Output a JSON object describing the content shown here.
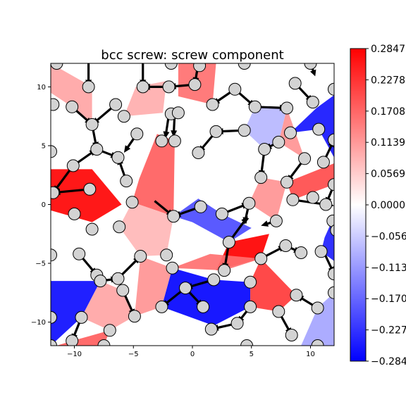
{
  "chart_data": {
    "type": "heatmap",
    "title": "bcc screw: screw component",
    "xlabel": "",
    "ylabel": "",
    "xlim": [
      -12,
      12
    ],
    "ylim": [
      -12,
      12
    ],
    "x_ticks": [
      -10,
      -5,
      0,
      5,
      10
    ],
    "y_ticks": [
      10,
      5,
      0,
      -5,
      -10
    ],
    "x_tick_labels": [
      "−10",
      "−5",
      "0",
      "5",
      "10"
    ],
    "y_tick_labels": [
      "10",
      "5",
      "0",
      "−5",
      "−10"
    ],
    "colormap": "bwr",
    "colors": {
      "min": "#0000ff",
      "mid": "#ffffff",
      "max": "#ff0000",
      "atom": "#d3d3d3"
    },
    "colorbar": {
      "min": -0.2847,
      "max": 0.2847,
      "ticks": [
        0.2847,
        0.2278,
        0.1708,
        0.1139,
        0.0569,
        0.0,
        -0.0569,
        -0.1139,
        -0.1708,
        -0.2278,
        -0.2847
      ],
      "tick_labels": [
        "0.2847",
        "0.2278",
        "0.1708",
        "0.1139",
        "0.0569",
        "0.0000",
        "−0.0569",
        "−0.1139",
        "−0.1708",
        "−0.2278",
        "−0.2847"
      ]
    },
    "atoms": [
      [
        -11.5,
        12.0
      ],
      [
        -8.8,
        10.0
      ],
      [
        -4.2,
        10.0
      ],
      [
        -2.0,
        10.0
      ],
      [
        0.2,
        10.2
      ],
      [
        -11.8,
        8.5
      ],
      [
        -10.2,
        8.3
      ],
      [
        -8.5,
        6.8
      ],
      [
        -6.5,
        8.5
      ],
      [
        -5.8,
        7.5
      ],
      [
        -1.8,
        7.7
      ],
      [
        -1.2,
        7.8
      ],
      [
        1.7,
        8.5
      ],
      [
        3.6,
        9.8
      ],
      [
        5.3,
        8.3
      ],
      [
        8.0,
        8.2
      ],
      [
        10.2,
        8.7
      ],
      [
        8.7,
        10.3
      ],
      [
        -1.8,
        12.0
      ],
      [
        0.6,
        11.8
      ],
      [
        4.4,
        12.0
      ],
      [
        10.0,
        12.0
      ],
      [
        12.0,
        9.8
      ],
      [
        -8.1,
        4.7
      ],
      [
        -6.3,
        4.0
      ],
      [
        -4.7,
        6.0
      ],
      [
        -2.6,
        5.4
      ],
      [
        -1.5,
        5.4
      ],
      [
        0.5,
        4.4
      ],
      [
        2.0,
        6.2
      ],
      [
        4.4,
        6.3
      ],
      [
        6.1,
        4.7
      ],
      [
        7.3,
        5.3
      ],
      [
        8.3,
        6.1
      ],
      [
        9.5,
        3.9
      ],
      [
        10.7,
        6.4
      ],
      [
        11.1,
        3.6
      ],
      [
        12.0,
        5.5
      ],
      [
        -12.0,
        4.5
      ],
      [
        -10.1,
        3.3
      ],
      [
        -5.6,
        2.0
      ],
      [
        -11.8,
        1.0
      ],
      [
        -8.7,
        1.3
      ],
      [
        5.8,
        2.3
      ],
      [
        8.0,
        1.9
      ],
      [
        10.2,
        0.6
      ],
      [
        8.5,
        0.4
      ],
      [
        11.3,
        0.0
      ],
      [
        12.0,
        1.7
      ],
      [
        -10.0,
        -0.8
      ],
      [
        -5.1,
        0.2
      ],
      [
        -1.6,
        -1.0
      ],
      [
        0.7,
        -0.2
      ],
      [
        2.5,
        -0.8
      ],
      [
        4.8,
        0.1
      ],
      [
        7.1,
        -1.4
      ],
      [
        11.9,
        -1.4
      ],
      [
        12.2,
        -2.2
      ],
      [
        -8.5,
        -2.1
      ],
      [
        -6.2,
        -1.9
      ],
      [
        -4.4,
        -4.4
      ],
      [
        -2.2,
        -4.3
      ],
      [
        -1.7,
        -5.4
      ],
      [
        3.1,
        -3.2
      ],
      [
        5.8,
        -4.6
      ],
      [
        7.9,
        -3.5
      ],
      [
        9.2,
        -4.1
      ],
      [
        10.9,
        -4.0
      ],
      [
        12.0,
        -5.9
      ],
      [
        -12.0,
        -4.3
      ],
      [
        -9.6,
        -4.2
      ],
      [
        -8.1,
        -6.0
      ],
      [
        -6.3,
        -6.3
      ],
      [
        -5.9,
        -7.3
      ],
      [
        -7.8,
        -6.5
      ],
      [
        2.7,
        -5.6
      ],
      [
        1.8,
        -6.4
      ],
      [
        4.9,
        -6.6
      ],
      [
        -4.9,
        -9.5
      ],
      [
        -2.6,
        -8.7
      ],
      [
        -0.6,
        -7.1
      ],
      [
        0.9,
        -8.7
      ],
      [
        4.9,
        -8.7
      ],
      [
        -12.0,
        -9.6
      ],
      [
        -9.4,
        -9.6
      ],
      [
        -7.0,
        -10.7
      ],
      [
        1.6,
        -10.6
      ],
      [
        3.8,
        -10.1
      ],
      [
        7.3,
        -9.1
      ],
      [
        8.4,
        -11.1
      ],
      [
        10.6,
        -8.8
      ],
      [
        12.0,
        -7.5
      ],
      [
        8.8,
        -7.7
      ],
      [
        -10.2,
        -11.6
      ],
      [
        -7.5,
        -12.0
      ],
      [
        4.6,
        -12.0
      ],
      [
        10.6,
        -12.0
      ],
      [
        -12.0,
        -12.0
      ]
    ],
    "arrows": [
      [
        -8.8,
        12.0,
        -8.8,
        10.0
      ],
      [
        -4.2,
        12.0,
        -4.2,
        10.0
      ],
      [
        -2.0,
        10.0,
        -4.2,
        10.0
      ],
      [
        0.2,
        10.2,
        -2.0,
        10.0
      ],
      [
        0.5,
        12.0,
        0.2,
        10.2
      ],
      [
        -10.2,
        8.3,
        -8.5,
        6.8
      ],
      [
        -6.5,
        8.5,
        -8.5,
        6.8
      ],
      [
        -11.8,
        8.5,
        -12.0,
        8.3
      ],
      [
        3.6,
        9.8,
        1.7,
        8.5
      ],
      [
        5.3,
        8.3,
        8.0,
        8.2
      ],
      [
        3.6,
        9.8,
        5.3,
        8.3
      ],
      [
        8.7,
        10.3,
        10.2,
        8.7
      ],
      [
        10.0,
        12.0,
        10.4,
        10.9
      ],
      [
        -1.5,
        7.8,
        -1.6,
        5.7
      ],
      [
        -2.0,
        7.6,
        -2.3,
        5.6
      ],
      [
        -8.1,
        4.7,
        -6.3,
        4.0
      ],
      [
        -8.5,
        6.8,
        -8.1,
        4.7
      ],
      [
        -4.7,
        6.0,
        -5.8,
        4.4
      ],
      [
        2.0,
        6.2,
        0.5,
        4.4
      ],
      [
        4.4,
        6.3,
        2.0,
        6.2
      ],
      [
        6.1,
        4.7,
        5.8,
        2.3
      ],
      [
        7.3,
        5.3,
        6.1,
        4.7
      ],
      [
        9.5,
        3.9,
        8.0,
        1.9
      ],
      [
        -10.1,
        3.3,
        -11.8,
        1.0
      ],
      [
        -10.1,
        3.3,
        -8.1,
        4.7
      ],
      [
        -8.7,
        1.3,
        -11.8,
        1.0
      ],
      [
        -5.6,
        2.0,
        -6.3,
        4.0
      ],
      [
        11.1,
        3.6,
        12.0,
        5.5
      ],
      [
        12.0,
        1.7,
        11.3,
        0.0
      ],
      [
        -3.2,
        0.3,
        -1.6,
        -1.0
      ],
      [
        0.7,
        -0.2,
        -1.6,
        -1.0
      ],
      [
        2.5,
        -0.8,
        4.8,
        0.1
      ],
      [
        8.5,
        0.4,
        12.0,
        -0.1
      ],
      [
        4.8,
        0.1,
        4.4,
        -1.7
      ],
      [
        7.1,
        -1.4,
        5.8,
        -1.8
      ],
      [
        3.1,
        -3.2,
        2.7,
        -5.6
      ],
      [
        3.1,
        -3.2,
        4.7,
        -1.0
      ],
      [
        5.8,
        -4.6,
        7.9,
        -3.5
      ],
      [
        7.9,
        -3.5,
        9.2,
        -4.1
      ],
      [
        -9.6,
        -4.2,
        -8.1,
        -6.0
      ],
      [
        -7.8,
        -6.5,
        -6.3,
        -6.3
      ],
      [
        -6.3,
        -6.3,
        -4.4,
        -4.4
      ],
      [
        -5.9,
        -7.3,
        -4.9,
        -9.5
      ],
      [
        -0.6,
        -7.1,
        -2.6,
        -8.7
      ],
      [
        1.8,
        -6.4,
        -0.6,
        -7.1
      ],
      [
        -0.6,
        -7.1,
        0.9,
        -8.7
      ],
      [
        4.9,
        -8.7,
        3.8,
        -10.1
      ],
      [
        3.8,
        -10.1,
        1.6,
        -10.6
      ],
      [
        7.3,
        -9.1,
        8.4,
        -11.1
      ],
      [
        10.6,
        -8.8,
        8.8,
        -7.7
      ],
      [
        -9.4,
        -9.6,
        -10.2,
        -11.6
      ],
      [
        11.2,
        -4.2,
        12.0,
        -5.9
      ]
    ],
    "regions": [
      {
        "polygon": [
          [
            -12,
            3
          ],
          [
            -8.5,
            3
          ],
          [
            -6,
            0
          ],
          [
            -8.5,
            -1.5
          ],
          [
            -12,
            -0.5
          ]
        ],
        "value": 0.28
      },
      {
        "polygon": [
          [
            -4.5,
            2.2
          ],
          [
            -3,
            6
          ],
          [
            -1.5,
            5.4
          ],
          [
            -1.6,
            -1.0
          ],
          [
            -5.1,
            0.2
          ]
        ],
        "value": 0.18
      },
      {
        "polygon": [
          [
            -1.2,
            12
          ],
          [
            2,
            12
          ],
          [
            1.7,
            8.5
          ],
          [
            -1.2,
            9.2
          ]
        ],
        "value": 0.16
      },
      {
        "polygon": [
          [
            -2.2,
            10.5
          ],
          [
            -2.5,
            7.8
          ],
          [
            -5.8,
            7.5
          ],
          [
            -4.8,
            10
          ]
        ],
        "value": 0.09
      },
      {
        "polygon": [
          [
            -8.5,
            10
          ],
          [
            -8.5,
            6.8
          ],
          [
            -10.2,
            8.3
          ],
          [
            -12,
            9.5
          ],
          [
            -12,
            12
          ]
        ],
        "value": 0.1
      },
      {
        "polygon": [
          [
            8.0,
            8.2
          ],
          [
            9.5,
            3.9
          ],
          [
            7.3,
            5.3
          ]
        ],
        "value": 0.12
      },
      {
        "polygon": [
          [
            8.0,
            1.9
          ],
          [
            12.0,
            3.5
          ],
          [
            12.0,
            1.7
          ],
          [
            8.5,
            0.4
          ]
        ],
        "value": 0.2
      },
      {
        "polygon": [
          [
            4.8,
            0.1
          ],
          [
            5.8,
            2.3
          ],
          [
            8.0,
            1.9
          ],
          [
            7.1,
            -1.4
          ]
        ],
        "value": 0.12
      },
      {
        "polygon": [
          [
            -12,
            -6.5
          ],
          [
            -7.8,
            -6.5
          ],
          [
            -9.4,
            -9.6
          ],
          [
            -12,
            -12
          ]
        ],
        "value": -0.27
      },
      {
        "polygon": [
          [
            -10.2,
            -11.6
          ],
          [
            -7.0,
            -10.7
          ],
          [
            -7.5,
            -12
          ],
          [
            -11.5,
            -12
          ]
        ],
        "value": 0.18
      },
      {
        "polygon": [
          [
            0.5,
            0.5
          ],
          [
            2.5,
            -0.8
          ],
          [
            5.0,
            -2.0
          ],
          [
            3.1,
            -3.2
          ],
          [
            0.0,
            -1.5
          ],
          [
            -1.6,
            -1.0
          ]
        ],
        "value": -0.2
      },
      {
        "polygon": [
          [
            -4.4,
            -4.4
          ],
          [
            -2.2,
            -4.3
          ],
          [
            -1.6,
            -1.0
          ],
          [
            -5.1,
            0.2
          ],
          [
            -6.2,
            -1.9
          ]
        ],
        "value": 0.08
      },
      {
        "polygon": [
          [
            2.0,
            -5.6
          ],
          [
            5.8,
            -4.6
          ],
          [
            6.5,
            -2.5
          ],
          [
            3.1,
            -3.2
          ]
        ],
        "value": 0.29
      },
      {
        "polygon": [
          [
            -1.7,
            -5.4
          ],
          [
            2.7,
            -5.6
          ],
          [
            5.8,
            -4.6
          ],
          [
            1.5,
            -4.2
          ]
        ],
        "value": 0.16
      },
      {
        "polygon": [
          [
            -1.7,
            -5.4
          ],
          [
            1.8,
            -6.4
          ],
          [
            4.9,
            -6.6
          ],
          [
            4.9,
            -8.7
          ],
          [
            1.8,
            -10.3
          ],
          [
            -2.6,
            -8.7
          ]
        ],
        "value": -0.28
      },
      {
        "polygon": [
          [
            5.8,
            -4.6
          ],
          [
            8.8,
            -7.7
          ],
          [
            7.3,
            -9.1
          ],
          [
            4.9,
            -8.7
          ],
          [
            4.9,
            -6.6
          ]
        ],
        "value": 0.22
      },
      {
        "polygon": [
          [
            10.5,
            8.2
          ],
          [
            12.0,
            9.3
          ],
          [
            12.0,
            4.0
          ],
          [
            10.7,
            6.4
          ],
          [
            8.3,
            6.1
          ]
        ],
        "value": -0.26
      },
      {
        "polygon": [
          [
            11.2,
            -2.8
          ],
          [
            12.0,
            -1.0
          ],
          [
            12.0,
            -4.8
          ],
          [
            10.9,
            -4.0
          ]
        ],
        "value": -0.25
      },
      {
        "polygon": [
          [
            9.2,
            -12.0
          ],
          [
            12.0,
            -12.0
          ],
          [
            12.0,
            -7.5
          ],
          [
            10.6,
            -8.8
          ]
        ],
        "value": -0.1
      },
      {
        "polygon": [
          [
            -4.9,
            -9.5
          ],
          [
            -2.6,
            -8.7
          ],
          [
            -1.7,
            -5.4
          ],
          [
            -4.4,
            -4.4
          ]
        ],
        "value": 0.12
      },
      {
        "polygon": [
          [
            -5.9,
            -7.3
          ],
          [
            -4.9,
            -9.5
          ],
          [
            -7.0,
            -10.7
          ],
          [
            -9.4,
            -9.6
          ],
          [
            -7.8,
            -6.5
          ]
        ],
        "value": 0.1
      },
      {
        "polygon": [
          [
            4.4,
            6.3
          ],
          [
            5.3,
            8.3
          ],
          [
            8.0,
            8.2
          ],
          [
            7.3,
            5.3
          ],
          [
            6.1,
            4.7
          ]
        ],
        "value": -0.08
      }
    ]
  }
}
